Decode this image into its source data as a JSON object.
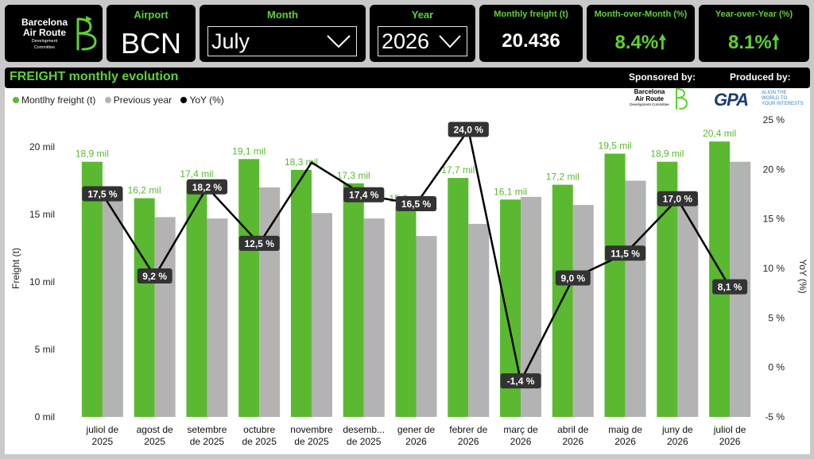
{
  "header": {
    "logo_lines": [
      "Barcelona",
      "Air Route",
      "Development Committee"
    ],
    "airport_label": "Airport",
    "airport_value": "BCN",
    "month_label": "Month",
    "month_value": "July",
    "year_label": "Year",
    "year_value": "2026",
    "kpi_freight_label": "Monthly freight (t)",
    "kpi_freight_value": "20.436",
    "kpi_mom_label": "Month-over-Month (%)",
    "kpi_mom_value": "8.4%",
    "kpi_yoy_label": "Year-over-Year (%)",
    "kpi_yoy_value": "8.1%",
    "arrow_icon": "arrow-up-icon"
  },
  "section": {
    "title": "FREIGHT monthly evolution",
    "sponsored_label": "Sponsored by:",
    "produced_label": "Produced by:",
    "sponsor_lines": [
      "Barcelona",
      "Air Route",
      "Development Committee"
    ],
    "producer_name": "GPA",
    "producer_tagline": [
      "ALIGN THE",
      "WORLD TO",
      "YOUR INTERESTS"
    ]
  },
  "colors": {
    "green": "#5ab930",
    "gray": "#b3b3b3",
    "line": "#000000",
    "kpi_green": "#5fd134"
  },
  "chart_data": {
    "type": "bar",
    "categories": [
      [
        "juliol de",
        "2025"
      ],
      [
        "agost de",
        "2025"
      ],
      [
        "setembre",
        "de 2025"
      ],
      [
        "octubre",
        "de 2025"
      ],
      [
        "novembre",
        "de 2025"
      ],
      [
        "desemb...",
        "de 2025"
      ],
      [
        "gener de",
        "2026"
      ],
      [
        "febrer de",
        "2026"
      ],
      [
        "març de",
        "2026"
      ],
      [
        "abril de",
        "2026"
      ],
      [
        "maig de",
        "2026"
      ],
      [
        "juny de",
        "2026"
      ],
      [
        "juliol de",
        "2026"
      ]
    ],
    "series": [
      {
        "name": "Montlhy freight (t)",
        "kind": "bar",
        "values": [
          18.9,
          16.2,
          17.4,
          19.1,
          18.3,
          17.3,
          15.6,
          17.7,
          16.1,
          17.2,
          19.5,
          18.9,
          20.4
        ],
        "labels": [
          "18,9 mil",
          "16,2 mil",
          "17,4 mil",
          "19,1 mil",
          "18,3 mil",
          "17,3 mil",
          "15,6 mil",
          "17,7 mil",
          "16,1 mil",
          "17,2 mil",
          "19,5 mil",
          "18,9 mil",
          "20,4 mil"
        ]
      },
      {
        "name": "Previous year",
        "kind": "bar",
        "values": [
          16.1,
          14.8,
          14.7,
          17.0,
          15.1,
          14.7,
          13.4,
          14.3,
          16.3,
          15.7,
          17.5,
          16.1,
          18.9
        ]
      },
      {
        "name": "YoY (%)",
        "kind": "line",
        "axis": "right",
        "values": [
          17.5,
          9.2,
          18.2,
          12.5,
          20.7,
          17.4,
          16.5,
          24.0,
          -1.4,
          9.0,
          11.5,
          17.0,
          8.1
        ],
        "labels": [
          "17,5 %",
          "9,2 %",
          "18,2 %",
          "12,5 %",
          "",
          "17,4 %",
          "16,5 %",
          "24,0 %",
          "-1,4 %",
          "9,0 %",
          "11,5 %",
          "17,0 %",
          "8,1 %"
        ]
      }
    ],
    "ylabel": "Freight (t)",
    "y2label": "YoY (%)",
    "ylim": [
      0,
      22
    ],
    "yticks": [
      0,
      5,
      10,
      15,
      20
    ],
    "ytick_labels": [
      "0 mil",
      "5 mil",
      "10 mil",
      "15 mil",
      "20 mil"
    ],
    "y2lim": [
      -5,
      25
    ],
    "y2ticks": [
      -5,
      0,
      5,
      10,
      15,
      20,
      25
    ],
    "y2tick_labels": [
      "-5 %",
      "0 %",
      "5 %",
      "10 %",
      "15 %",
      "20 %",
      "25 %"
    ],
    "legend_position": "top-left",
    "grid": false
  }
}
